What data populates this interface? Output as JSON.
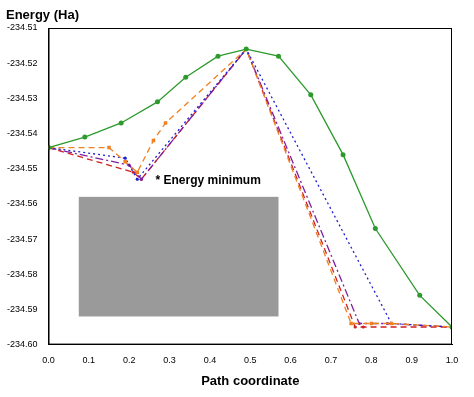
{
  "chart_data": {
    "type": "line",
    "y_label": "Energy (Ha)",
    "x_label": "Path coordinate",
    "xlim": [
      0.0,
      1.0
    ],
    "xticks": [
      {
        "value": 0.0,
        "label": "0.0"
      },
      0.1,
      0.2,
      0.3,
      0.4,
      0.5,
      0.6,
      0.7,
      0.8,
      0.9,
      {
        "value": 1.0,
        "label": "1.0"
      }
    ],
    "ylim": [
      -234.6,
      -234.51
    ],
    "yticks": [
      {
        "value": -234.6,
        "label": "-234.60"
      },
      -234.59,
      -234.58,
      -234.57,
      -234.56,
      -234.55,
      -234.54,
      -234.53,
      -234.52,
      -234.51
    ],
    "grid": false,
    "annotations": [
      {
        "text": "* Energy minimum",
        "x": 0.265,
        "y": -234.5535
      }
    ],
    "series": [
      {
        "color": "#2e9a2e",
        "marker": "circle",
        "line_style": "solid",
        "x": [
          0.0,
          0.09,
          0.18,
          0.27,
          0.34,
          0.42,
          0.49,
          0.57,
          0.65,
          0.73,
          0.81,
          0.92,
          1.0
        ],
        "values": [
          -234.544,
          -234.541,
          -234.537,
          -234.531,
          -234.524,
          -234.518,
          -234.516,
          -234.518,
          -234.529,
          -234.546,
          -234.567,
          -234.586,
          -234.595
        ]
      },
      {
        "color": "#f08020",
        "marker": "square",
        "line_style": "dashed",
        "x": [
          0.0,
          0.15,
          0.19,
          0.22,
          0.26,
          0.29,
          0.49,
          0.75,
          0.8,
          0.85,
          1.0
        ],
        "values": [
          -234.544,
          -234.544,
          -234.548,
          -234.551,
          -234.542,
          -234.537,
          -234.516,
          -234.594,
          -234.594,
          -234.594,
          -234.595
        ]
      },
      {
        "color": "#2020d0",
        "marker": "circle",
        "line_style": "dotted",
        "x": [
          0.0,
          0.19,
          0.22,
          0.49,
          0.85,
          1.0
        ],
        "values": [
          -234.544,
          -234.547,
          -234.553,
          -234.516,
          -234.594,
          -234.595
        ]
      },
      {
        "color": "#8020a0",
        "marker": "circle",
        "line_style": "dashdot",
        "x": [
          0.0,
          0.2,
          0.23,
          0.49,
          0.77,
          0.84,
          1.0
        ],
        "values": [
          -234.544,
          -234.549,
          -234.553,
          -234.516,
          -234.594,
          -234.594,
          -234.595
        ]
      },
      {
        "color": "#d02020",
        "marker": "circle",
        "line_style": "dashed",
        "x": [
          0.0,
          0.21,
          0.23,
          0.49,
          0.76,
          0.78,
          1.0
        ],
        "values": [
          -234.544,
          -234.551,
          -234.553,
          -234.516,
          -234.595,
          -234.595,
          -234.595
        ]
      }
    ]
  }
}
